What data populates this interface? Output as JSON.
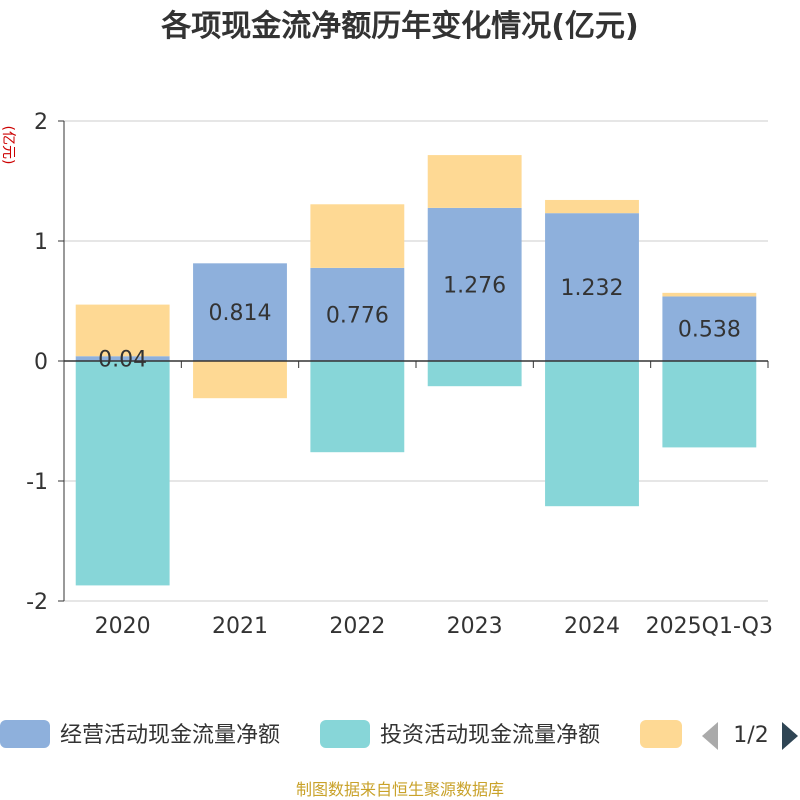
{
  "chart_data": {
    "type": "bar",
    "stacked": true,
    "title": "各项现金流净额历年变化情况(亿元)",
    "ylabel": "(亿元)",
    "ylim": [
      -2,
      2
    ],
    "yticks": [
      2,
      1,
      0,
      -1,
      -2
    ],
    "categories": [
      "2020",
      "2021",
      "2022",
      "2023",
      "2024",
      "2025Q1-Q3"
    ],
    "series": [
      {
        "name": "经营活动现金流量净额",
        "color": "#8eb0dc",
        "values": [
          0.04,
          0.814,
          0.776,
          1.276,
          1.232,
          0.538
        ],
        "labels": [
          "0.04",
          "0.814",
          "0.776",
          "1.276",
          "1.232",
          "0.538"
        ]
      },
      {
        "name": "投资活动现金流量净额",
        "color": "#87d6d8",
        "values": [
          -1.87,
          0.0,
          -0.76,
          -0.21,
          -1.21,
          -0.72
        ]
      },
      {
        "name": "",
        "color": "#fed994",
        "values": [
          0.43,
          -0.31,
          0.53,
          0.44,
          0.11,
          0.03
        ]
      }
    ]
  },
  "legend": {
    "items": [
      "经营活动现金流量净额",
      "投资活动现金流量净额",
      ""
    ],
    "page": "1/2"
  },
  "source": "制图数据来自恒生聚源数据库",
  "colors": {
    "axis": "#333333",
    "grid": "#cccccc",
    "ylabel": "#cc0000",
    "source": "#c9a22a",
    "pager_inactive": "#aaaaaa",
    "pager_active": "#2f4554"
  }
}
